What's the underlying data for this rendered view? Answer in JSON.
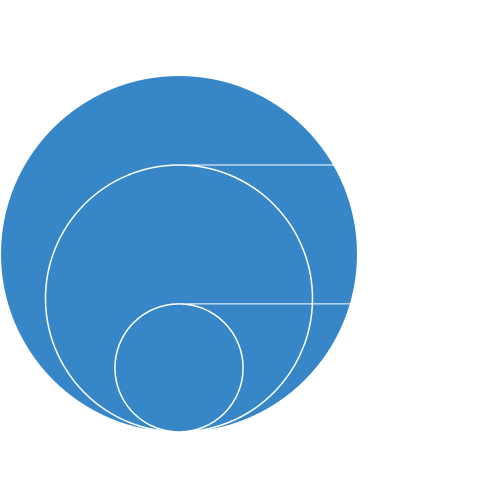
{
  "chart_data": {
    "type": "nested-circle",
    "title": "",
    "colors": {
      "fill": "#3787c8",
      "stroke": "#ffffff",
      "background": "#ffffff"
    },
    "circles": [
      {
        "relative_size": 1.0
      },
      {
        "relative_size": 0.75
      },
      {
        "relative_size": 0.36
      }
    ],
    "leader_lines": true,
    "labels": []
  }
}
